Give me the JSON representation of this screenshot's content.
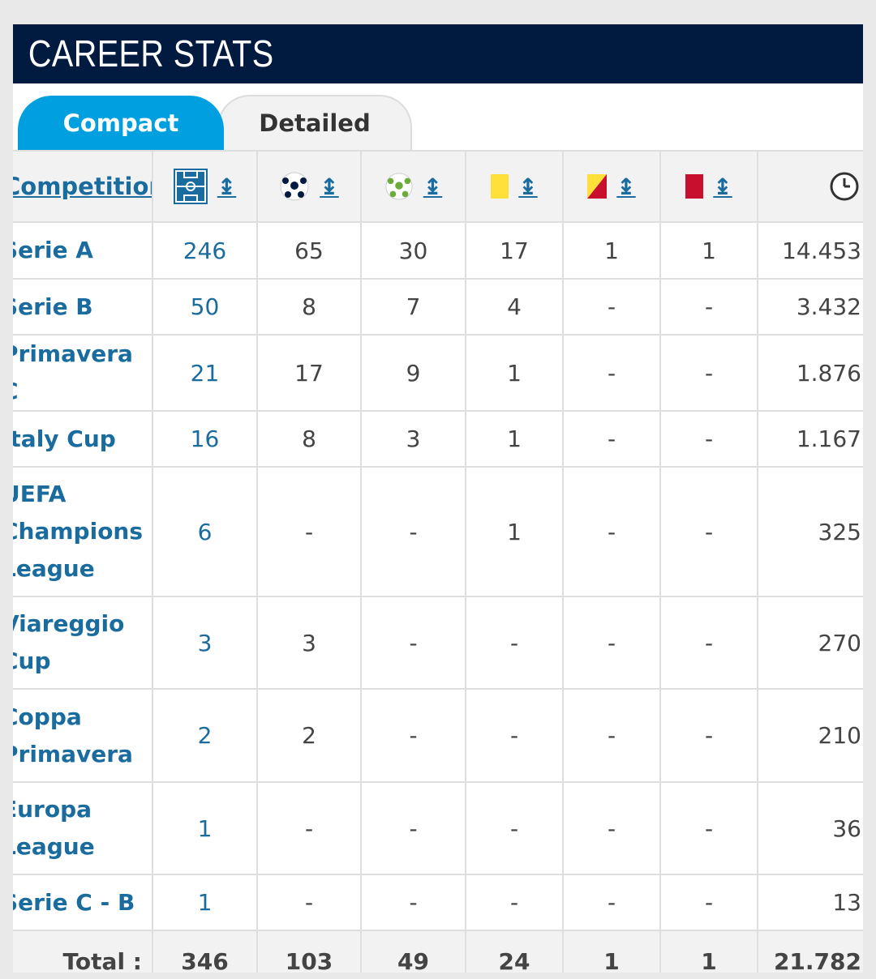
{
  "header": {
    "title": "CAREER STATS"
  },
  "tabs": [
    {
      "label": "Compact",
      "active": true
    },
    {
      "label": "Detailed",
      "active": false
    }
  ],
  "table": {
    "competition_header": "Competition",
    "sort_glyph": "↨",
    "columns": [
      {
        "key": "appearances",
        "icon": "pitch-icon"
      },
      {
        "key": "goals",
        "icon": "football-icon"
      },
      {
        "key": "assists",
        "icon": "assist-ball-icon"
      },
      {
        "key": "yellow_cards",
        "icon": "yellow-card-icon"
      },
      {
        "key": "second_yellow",
        "icon": "yellow-red-card-icon"
      },
      {
        "key": "red_cards",
        "icon": "red-card-icon"
      },
      {
        "key": "minutes",
        "icon": "clock-icon"
      }
    ],
    "rows": [
      {
        "competition": "Serie A",
        "apps": "246",
        "goals": "65",
        "assists": "30",
        "yellow": "17",
        "second_yellow": "1",
        "red": "1",
        "minutes": "14.453"
      },
      {
        "competition": "Serie B",
        "apps": "50",
        "goals": "8",
        "assists": "7",
        "yellow": "4",
        "second_yellow": "-",
        "red": "-",
        "minutes": "3.432"
      },
      {
        "competition": "Primavera C",
        "apps": "21",
        "goals": "17",
        "assists": "9",
        "yellow": "1",
        "second_yellow": "-",
        "red": "-",
        "minutes": "1.876"
      },
      {
        "competition": "Italy Cup",
        "apps": "16",
        "goals": "8",
        "assists": "3",
        "yellow": "1",
        "second_yellow": "-",
        "red": "-",
        "minutes": "1.167"
      },
      {
        "competition": "UEFA Champions League",
        "lines": [
          "UEFA",
          "Champions",
          "League"
        ],
        "apps": "6",
        "goals": "-",
        "assists": "-",
        "yellow": "1",
        "second_yellow": "-",
        "red": "-",
        "minutes": "325"
      },
      {
        "competition": "Viareggio Cup",
        "lines": [
          "Viareggio",
          "Cup"
        ],
        "apps": "3",
        "goals": "3",
        "assists": "-",
        "yellow": "-",
        "second_yellow": "-",
        "red": "-",
        "minutes": "270"
      },
      {
        "competition": "Coppa Primavera",
        "lines": [
          "Coppa",
          "Primavera"
        ],
        "apps": "2",
        "goals": "2",
        "assists": "-",
        "yellow": "-",
        "second_yellow": "-",
        "red": "-",
        "minutes": "210"
      },
      {
        "competition": "Europa League",
        "lines": [
          "Europa",
          "League"
        ],
        "apps": "1",
        "goals": "-",
        "assists": "-",
        "yellow": "-",
        "second_yellow": "-",
        "red": "-",
        "minutes": "36"
      },
      {
        "competition": "Serie C - B",
        "apps": "1",
        "goals": "-",
        "assists": "-",
        "yellow": "-",
        "second_yellow": "-",
        "red": "-",
        "minutes": "13"
      }
    ],
    "total": {
      "label": "Total :",
      "apps": "346",
      "goals": "103",
      "assists": "49",
      "yellow": "24",
      "second_yellow": "1",
      "red": "1",
      "minutes": "21.782"
    }
  },
  "colors": {
    "header_bg": "#001a40",
    "tab_active": "#00a0e0",
    "link": "#1a6b9e",
    "yellow_card": "#ffe03a",
    "red_card": "#c8102e"
  }
}
